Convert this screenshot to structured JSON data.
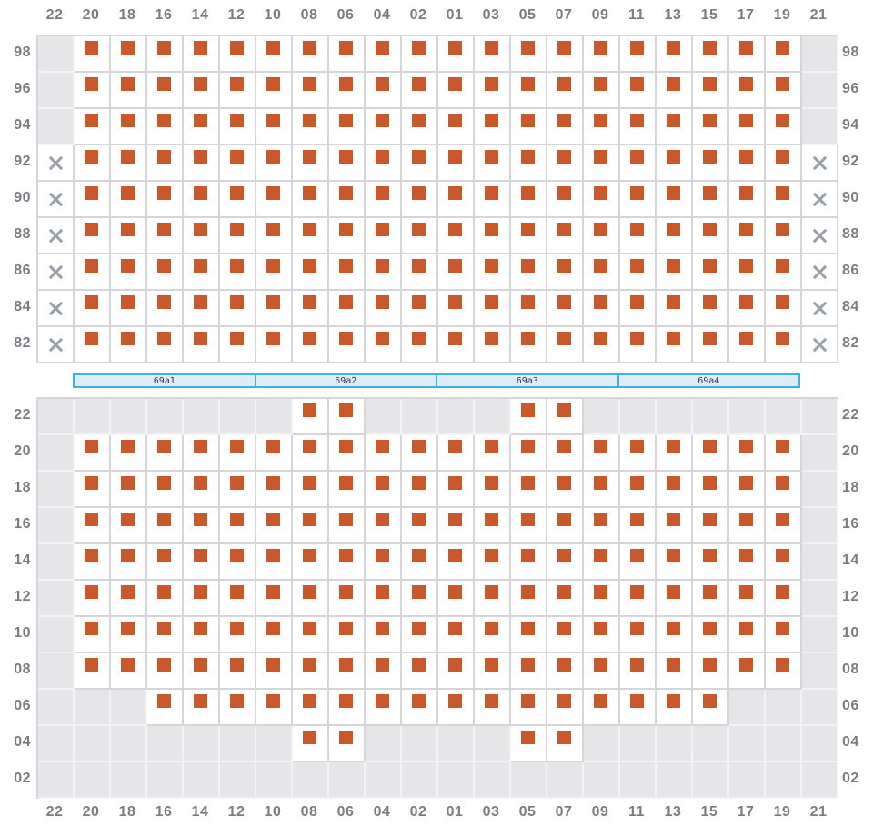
{
  "columns": [
    "22",
    "20",
    "18",
    "16",
    "14",
    "12",
    "10",
    "08",
    "06",
    "04",
    "02",
    "01",
    "03",
    "05",
    "07",
    "09",
    "11",
    "13",
    "15",
    "17",
    "19",
    "21"
  ],
  "cell_states": {
    "e": "empty",
    "s": "occupied",
    "x": "blocked"
  },
  "top_grid": {
    "row_labels": [
      "98",
      "96",
      "94",
      "92",
      "90",
      "88",
      "86",
      "84",
      "82"
    ],
    "cells": [
      "esssssssssssssssssssse",
      "esssssssssssssssssssse",
      "esssssssssssssssssssse",
      "xssssssssssssssssssssx",
      "xssssssssssssssssssssx",
      "xssssssssssssssssssssx",
      "xssssssssssssssssssssx",
      "xssssssssssssssssssssx",
      "xssssssssssssssssssssx"
    ]
  },
  "bar": {
    "segments": [
      "69a1",
      "69a2",
      "69a3",
      "69a4"
    ]
  },
  "bottom_grid": {
    "row_labels": [
      "22",
      "20",
      "18",
      "16",
      "14",
      "12",
      "10",
      "08",
      "06",
      "04",
      "02"
    ],
    "cells": [
      "eeeeeeesseeeesseeeeeee",
      "esssssssssssssssssssse",
      "esssssssssssssssssssse",
      "esssssssssssssssssssse",
      "esssssssssssssssssssse",
      "esssssssssssssssssssse",
      "esssssssssssssssssssse",
      "esssssssssssssssssssse",
      "eeesssssssssssssssseee",
      "eeeeeeesseeeesseeeeeee",
      "eeeeeeeeeeeeeeeeeeeeee"
    ]
  },
  "colors": {
    "occupied": "#c9582b",
    "empty_cell": "#e6e6e9",
    "grid_line": "#d6d6da",
    "label_text": "#7b7b84",
    "blocked_x": "#9aa0a8",
    "bar_border": "#41b1e1",
    "bar_fill": "#dcedf8",
    "bar_text": "#38383d"
  }
}
